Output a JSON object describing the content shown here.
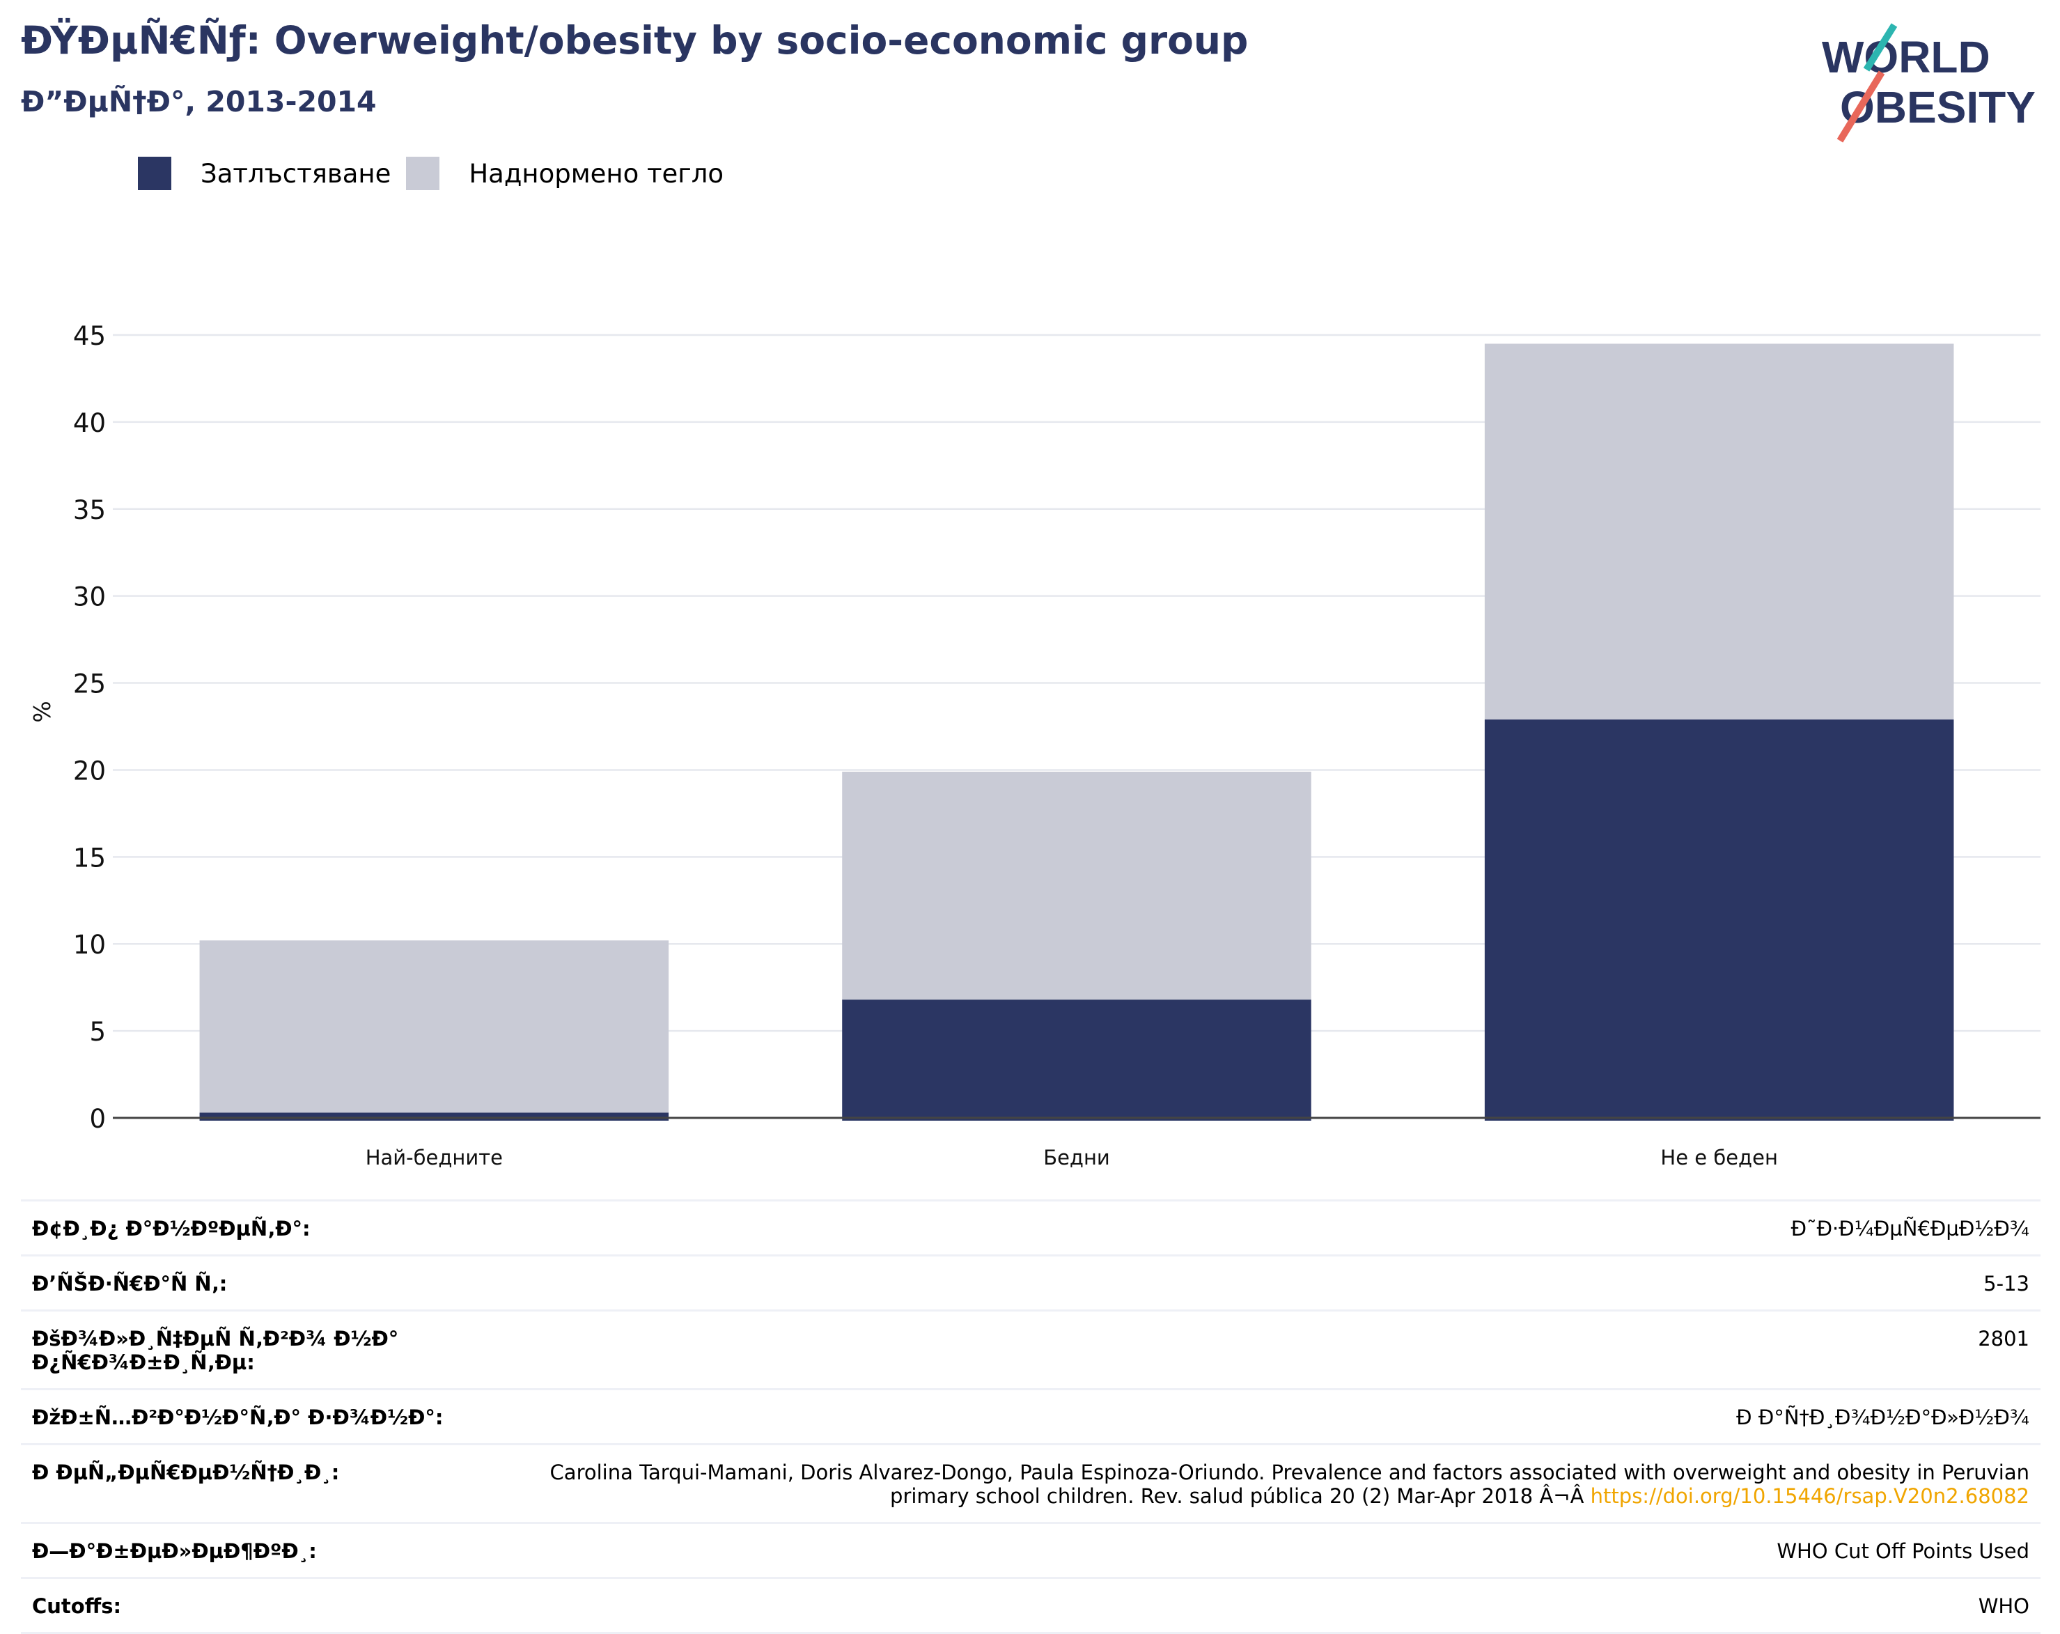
{
  "header": {
    "title": "ÐŸÐµÑ€Ñƒ: Overweight/obesity by socio-economic group",
    "subtitle": "Ð”ÐµÑ†Ð°, 2013-2014"
  },
  "logo": {
    "line1": "WORLD",
    "line2": "OBESITY"
  },
  "legend": [
    {
      "label": "Затлъстяване",
      "color": "#2b3663"
    },
    {
      "label": "Наднормено тегло",
      "color": "#c9cbd6"
    }
  ],
  "chart_data": {
    "type": "bar",
    "stacked": true,
    "categories": [
      "Най-бедните",
      "Бедни",
      "Не е беден"
    ],
    "series": [
      {
        "name": "Затлъстяване",
        "values": [
          0.3,
          6.8,
          22.9
        ],
        "color": "#2b3663"
      },
      {
        "name": "Наднормено тегло",
        "values": [
          9.9,
          13.1,
          21.6
        ],
        "color": "#c9cbd6"
      }
    ],
    "ylabel": "%",
    "ylim": [
      0,
      45
    ],
    "yticks": [
      0,
      5,
      10,
      15,
      20,
      25,
      30,
      35,
      40,
      45
    ],
    "grid": true
  },
  "info_table": [
    {
      "label": "Ð¢Ð¸Ð¿ Ð°Ð½ÐºÐµÑ‚Ð°:",
      "value": "Ð˜Ð·Ð¼ÐµÑ€ÐµÐ½Ð¾"
    },
    {
      "label": "Ð’ÑŠÐ·Ñ€Ð°Ñ Ñ‚:",
      "value": "5-13"
    },
    {
      "label": "ÐšÐ¾Ð»Ð¸Ñ‡ÐµÑ Ñ‚Ð²Ð¾ Ð½Ð° Ð¿Ñ€Ð¾Ð±Ð¸Ñ‚Ðµ:",
      "value": "2801"
    },
    {
      "label": "ÐžÐ±Ñ…Ð²Ð°Ð½Ð°Ñ‚Ð° Ð·Ð¾Ð½Ð°:",
      "value": "Ð Ð°Ñ†Ð¸Ð¾Ð½Ð°Ð»Ð½Ð¾"
    },
    {
      "label": "Ð ÐµÑ„ÐµÑ€ÐµÐ½Ñ†Ð¸Ð¸:",
      "value": "Carolina Tarqui-Mamani, Doris Alvarez-Dongo, Paula Espinoza-Oriundo. Prevalence and factors associated with overweight and obesity in Peruvian primary school children. Rev. salud pública 20 (2) Mar-Apr 2018 Â¬Â ",
      "link": "https://doi.org/10.15446/rsap.V20n2.68082"
    },
    {
      "label": "Ð—Ð°Ð±ÐµÐ»ÐµÐ¶ÐºÐ¸:",
      "value": "WHO Cut Off Points Used"
    },
    {
      "label": "Cutoffs:",
      "value": "WHO"
    }
  ]
}
